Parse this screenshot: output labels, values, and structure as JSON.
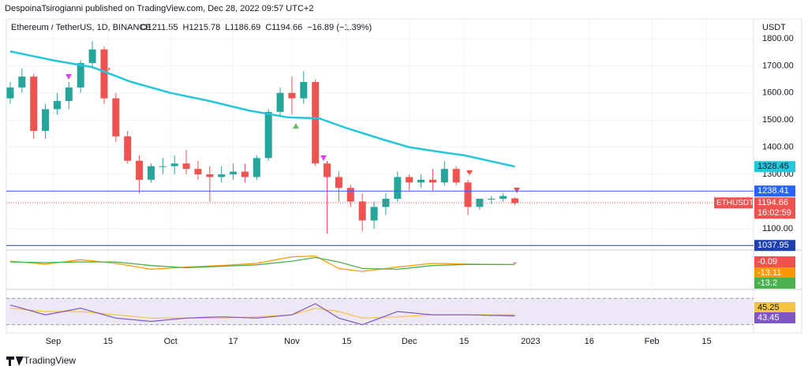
{
  "header": {
    "publisher": "DespoinaTsirogianni published on TradingView.com, Dec 28, 2022 09:57 UTC+2",
    "footer": "TradingView"
  },
  "chart_data": {
    "type": "candlestick",
    "currency": "USDT",
    "symbol_text": "Ethereum / TetherUS, 1D, BINANCE",
    "ohlc_labels": [
      "O1211.55",
      "H1215.78",
      "L1186.69",
      "C1194.66",
      "−16.89 (−1.39%)"
    ],
    "up_color": "#26a69a",
    "down_color": "#ef5350",
    "x": [
      -11,
      -8,
      -5,
      -2,
      1,
      4,
      7,
      10,
      13,
      16,
      19,
      22,
      25,
      28,
      31,
      34,
      37,
      40,
      43,
      46,
      49,
      52,
      55,
      58,
      61,
      64,
      67,
      70,
      73,
      76,
      79,
      82,
      85,
      88,
      91,
      94,
      97,
      100,
      103,
      106,
      109,
      112,
      115,
      118
    ],
    "open": [
      1580,
      1620,
      1660,
      1460,
      1540,
      1570,
      1620,
      1710,
      1760,
      1580,
      1440,
      1350,
      1280,
      1330,
      1330,
      1340,
      1320,
      1300,
      1290,
      1300,
      1310,
      1290,
      1360,
      1530,
      1600,
      1580,
      1640,
      1340,
      1290,
      1250,
      1200,
      1130,
      1180,
      1210,
      1290,
      1270,
      1280,
      1270,
      1320,
      1270,
      1180,
      1210,
      1210,
      1211.55
    ],
    "high": [
      1640,
      1690,
      1670,
      1560,
      1600,
      1640,
      1720,
      1790,
      1770,
      1600,
      1460,
      1370,
      1340,
      1360,
      1370,
      1390,
      1350,
      1330,
      1330,
      1340,
      1340,
      1370,
      1540,
      1620,
      1660,
      1680,
      1650,
      1350,
      1310,
      1260,
      1230,
      1200,
      1230,
      1310,
      1300,
      1300,
      1320,
      1350,
      1330,
      1280,
      1210,
      1220,
      1230,
      1215.78
    ],
    "low": [
      1560,
      1600,
      1430,
      1430,
      1520,
      1540,
      1600,
      1690,
      1560,
      1420,
      1340,
      1230,
      1270,
      1300,
      1300,
      1300,
      1280,
      1200,
      1270,
      1280,
      1270,
      1280,
      1350,
      1510,
      1520,
      1560,
      1330,
      1080,
      1200,
      1180,
      1090,
      1100,
      1150,
      1200,
      1240,
      1250,
      1240,
      1260,
      1260,
      1150,
      1170,
      1190,
      1200,
      1186.69
    ],
    "close": [
      1620,
      1660,
      1460,
      1540,
      1570,
      1620,
      1710,
      1760,
      1580,
      1440,
      1350,
      1280,
      1330,
      1330,
      1340,
      1320,
      1300,
      1290,
      1300,
      1310,
      1290,
      1360,
      1530,
      1600,
      1580,
      1640,
      1340,
      1290,
      1250,
      1200,
      1130,
      1180,
      1210,
      1290,
      1270,
      1280,
      1270,
      1320,
      1270,
      1180,
      1210,
      1210,
      1220,
      1194.66
    ],
    "ma_line": {
      "color": "#26c6da",
      "x": [
        -11,
        0,
        10,
        20,
        30,
        40,
        50,
        60,
        68,
        75,
        85,
        91,
        100,
        105,
        118
      ],
      "values": [
        1753,
        1720,
        1695,
        1640,
        1600,
        1570,
        1535,
        1510,
        1506,
        1470,
        1425,
        1400,
        1380,
        1370,
        1328.45
      ]
    },
    "levels": [
      {
        "value": 1238.41,
        "color": "#2962ff"
      },
      {
        "value": 1037.95,
        "color": "#1e3fae"
      }
    ],
    "last_price": 1194.66,
    "last_label": "ETHUSDT",
    "countdown": "16:02:59",
    "xlim": [
      -12,
      179
    ],
    "ylim": [
      1027,
      1855
    ],
    "xticks": [
      {
        "value": 0,
        "label": "Sep"
      },
      {
        "value": 14,
        "label": "15"
      },
      {
        "value": 30,
        "label": "Oct"
      },
      {
        "value": 46,
        "label": "17"
      },
      {
        "value": 61,
        "label": "Nov"
      },
      {
        "value": 75,
        "label": "15"
      },
      {
        "value": 91,
        "label": "Dec"
      },
      {
        "value": 105,
        "label": "15"
      },
      {
        "value": 122,
        "label": "2023"
      },
      {
        "value": 137,
        "label": "16"
      },
      {
        "value": 153,
        "label": "Feb"
      },
      {
        "value": 167,
        "label": "15"
      }
    ],
    "yticks": [
      {
        "value": 1100,
        "label": "1100.00"
      },
      {
        "value": 1200,
        "label": "1200.00"
      },
      {
        "value": 1300,
        "label": "1300.00"
      },
      {
        "value": 1400,
        "label": "1400.00"
      },
      {
        "value": 1500,
        "label": "1500.00"
      },
      {
        "value": 1600,
        "label": "1600.00"
      },
      {
        "value": 1700,
        "label": "1700.00"
      },
      {
        "value": 1800,
        "label": "1800.00"
      }
    ],
    "grid": true,
    "macd": {
      "x": [
        -11,
        -2,
        7,
        16,
        25,
        34,
        43,
        52,
        61,
        67,
        73,
        79,
        88,
        97,
        106,
        118
      ],
      "ylim": [
        -70,
        70
      ],
      "histogram_last": -0.09,
      "histogram_color": "#ef5350",
      "series": [
        {
          "color": "#ff9800",
          "values": [
            10,
            -10,
            20,
            -5,
            -45,
            -30,
            -20,
            -5,
            40,
            45,
            -40,
            -60,
            -30,
            -5,
            -10,
            -13.11
          ]
        },
        {
          "color": "#4caf50",
          "values": [
            5,
            0,
            5,
            5,
            -20,
            -35,
            -25,
            -15,
            10,
            35,
            5,
            -40,
            -45,
            -20,
            -12,
            -13.2
          ]
        }
      ]
    },
    "rsi": {
      "x": [
        -11,
        -2,
        7,
        16,
        25,
        34,
        43,
        52,
        61,
        67,
        73,
        79,
        88,
        97,
        106,
        118
      ],
      "ylim": [
        20,
        80
      ],
      "band": [
        30,
        70
      ],
      "band_color": "#ede7f6",
      "series": [
        {
          "color": "#f5c542",
          "values": [
            55,
            50,
            50,
            45,
            40,
            40,
            40,
            42,
            45,
            55,
            50,
            40,
            42,
            45,
            45,
            45.25
          ]
        },
        {
          "color": "#7e57c2",
          "values": [
            60,
            45,
            55,
            40,
            35,
            40,
            42,
            40,
            45,
            62,
            40,
            30,
            50,
            45,
            45,
            43.45
          ]
        }
      ]
    }
  }
}
